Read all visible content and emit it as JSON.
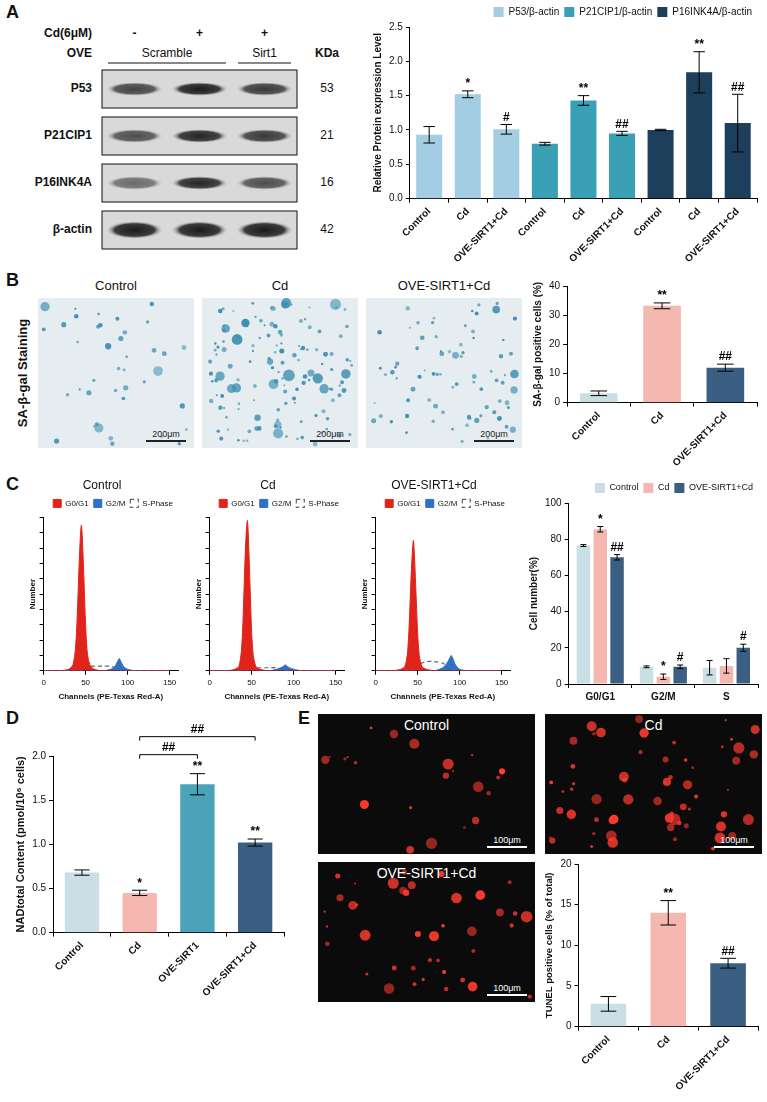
{
  "figure": {
    "panels": [
      "A",
      "B",
      "C",
      "D",
      "E"
    ],
    "blot": {
      "treatment_label": "Cd(6μM)",
      "treatment": [
        "-",
        "+",
        "+"
      ],
      "group_label": "OVE",
      "groups": [
        "Scramble",
        "Sirt1"
      ],
      "size_header": "KDa",
      "rows": [
        {
          "label": "P53",
          "kda": 53
        },
        {
          "label": "P21CIP1",
          "kda": 21
        },
        {
          "label": "P16INK4A",
          "kda": 16
        },
        {
          "label": "β-actin",
          "kda": 42
        }
      ]
    },
    "staining": {
      "side_label": "SA-β-gal Staining",
      "images": [
        "Control",
        "Cd",
        "OVE-SIRT1+Cd"
      ],
      "scale_bar": "200μm"
    },
    "tunel": {
      "images": [
        "Control",
        "Cd",
        "OVE-SIRT1+Cd"
      ],
      "scale_bar": "100μm"
    }
  },
  "chart_data": [
    {
      "type": "bar",
      "categories": [
        "Control",
        "Cd",
        "OVE-SIRT1+Cd",
        "Control",
        "Cd",
        "OVE-SIRT1+Cd",
        "Control",
        "Cd",
        "OVE-SIRT1+Cd"
      ],
      "y_label": "Relative Protein expression Level",
      "series": [
        {
          "name": "P53/β-actin",
          "color": "#a3cde3",
          "values": [
            0.93,
            1.52,
            1.01,
            null,
            null,
            null,
            null,
            null,
            null
          ],
          "errors": [
            0.12,
            0.05,
            0.07,
            null,
            null,
            null,
            null,
            null,
            null
          ],
          "significance": [
            null,
            "*",
            "#",
            null,
            null,
            null,
            null,
            null,
            null
          ]
        },
        {
          "name": "P21CIP1/β-actin",
          "color": "#3aa0b5",
          "values": [
            null,
            null,
            null,
            0.8,
            1.43,
            0.95,
            null,
            null,
            null
          ],
          "errors": [
            null,
            null,
            null,
            0.02,
            0.07,
            0.03,
            null,
            null,
            null
          ],
          "significance": [
            null,
            null,
            null,
            null,
            "**",
            "##",
            null,
            null,
            null
          ]
        },
        {
          "name": "P16INK4A/β-actin",
          "color": "#1d3f5c",
          "values": [
            null,
            null,
            null,
            null,
            null,
            null,
            1,
            1.84,
            1.1
          ],
          "errors": [
            null,
            null,
            null,
            null,
            null,
            null,
            0.01,
            0.3,
            0.42
          ],
          "significance": [
            null,
            null,
            null,
            null,
            null,
            null,
            null,
            "**",
            "##"
          ]
        }
      ],
      "ylim": [
        0,
        2.5
      ],
      "yticks": [
        {
          "value": 0,
          "label": "0.0"
        },
        0.5,
        {
          "value": 1,
          "label": "1.0"
        },
        1.5,
        {
          "value": 2,
          "label": "2.0"
        },
        2.5
      ],
      "grid": false,
      "legend": "top-right"
    },
    {
      "type": "bar",
      "categories": [
        "Control",
        "Cd",
        "OVE-SIRT1+Cd"
      ],
      "values": [
        3.2,
        33.2,
        12
      ],
      "errors": [
        0.8,
        1,
        1.2
      ],
      "significance": [
        null,
        "**",
        "##"
      ],
      "colors": [
        "#c9dfe5",
        "#f4b8b0",
        "#3b5f82"
      ],
      "y_label": "SA-β-gal positive cells (%)",
      "ylim": [
        0,
        40
      ],
      "yticks": [
        0,
        10,
        20,
        30,
        40
      ],
      "grid": false
    },
    {
      "type": "line",
      "title": "Control",
      "x": [
        0,
        10,
        20,
        30,
        35,
        38,
        40,
        42,
        44,
        45,
        46,
        48,
        50,
        52,
        55,
        60,
        70,
        80,
        85,
        88,
        90,
        92,
        95,
        100,
        110,
        120,
        130,
        140,
        150
      ],
      "series": [
        {
          "name": "G0/G1",
          "type": "area",
          "color": "#e0241b",
          "values": [
            0,
            0,
            0,
            1,
            4,
            15,
            35,
            65,
            90,
            95,
            88,
            60,
            30,
            12,
            4,
            1,
            0,
            0,
            0,
            0,
            0,
            0,
            0,
            0,
            0,
            0,
            0,
            0,
            0
          ]
        },
        {
          "name": "G2/M",
          "type": "area",
          "color": "#2f6fc4",
          "values": [
            0,
            0,
            0,
            0,
            0,
            0,
            0,
            0,
            0,
            0,
            0,
            0,
            0,
            0,
            0,
            0,
            0,
            1,
            3,
            6,
            8,
            6,
            3,
            1,
            0,
            0,
            0,
            0,
            0
          ]
        },
        {
          "name": "S-Phase",
          "type": "line",
          "line_style": "dashed",
          "color": "#666666",
          "values": [
            0,
            0,
            0,
            0,
            0,
            0,
            0,
            0,
            0,
            0,
            0,
            0,
            1,
            2,
            3,
            3,
            3,
            3,
            2,
            1,
            1,
            0,
            0,
            0,
            0,
            0,
            0,
            0,
            0
          ]
        }
      ],
      "x_label": "Channels (PE-Texas Red-A)",
      "y_label": "Number",
      "xlim": [
        0,
        160
      ],
      "xticks": [
        0,
        50,
        100,
        150
      ],
      "ylim": [
        0,
        100
      ],
      "tick_labels": "x",
      "grid": false,
      "legend": "top-right"
    },
    {
      "type": "line",
      "title": "Cd",
      "x": [
        0,
        10,
        20,
        30,
        35,
        38,
        40,
        42,
        44,
        45,
        46,
        48,
        50,
        52,
        55,
        60,
        70,
        80,
        85,
        88,
        90,
        92,
        95,
        100,
        110,
        120,
        130,
        140,
        150
      ],
      "series": [
        {
          "name": "G0/G1",
          "type": "area",
          "color": "#e0241b",
          "values": [
            0,
            0,
            0,
            1,
            3,
            14,
            36,
            70,
            94,
            98,
            90,
            58,
            26,
            10,
            3,
            1,
            0,
            0,
            0,
            0,
            0,
            0,
            0,
            0,
            0,
            0,
            0,
            0,
            0
          ]
        },
        {
          "name": "G2/M",
          "type": "area",
          "color": "#2f6fc4",
          "values": [
            0,
            0,
            0,
            0,
            0,
            0,
            0,
            0,
            0,
            0,
            0,
            0,
            0,
            0,
            0,
            0,
            0,
            1,
            2,
            3,
            4,
            3,
            2,
            1,
            0,
            0,
            0,
            0,
            0
          ]
        },
        {
          "name": "S-Phase",
          "type": "line",
          "line_style": "dashed",
          "color": "#666666",
          "values": [
            0,
            0,
            0,
            0,
            0,
            0,
            0,
            0,
            0,
            0,
            0,
            0,
            1,
            2,
            2,
            2,
            2,
            2,
            1,
            1,
            0,
            0,
            0,
            0,
            0,
            0,
            0,
            0,
            0
          ]
        }
      ],
      "x_label": "Channels (PE-Texas Red-A)",
      "y_label": "Number",
      "xlim": [
        0,
        160
      ],
      "xticks": [
        0,
        50,
        100,
        150
      ],
      "ylim": [
        0,
        100
      ],
      "tick_labels": "x",
      "grid": false,
      "legend": "top-right"
    },
    {
      "type": "line",
      "title": "OVE-SIRT1+Cd",
      "x": [
        0,
        10,
        20,
        30,
        35,
        38,
        40,
        42,
        44,
        45,
        46,
        48,
        50,
        52,
        55,
        60,
        70,
        80,
        85,
        88,
        90,
        92,
        95,
        100,
        110,
        120,
        130,
        140,
        150
      ],
      "series": [
        {
          "name": "G0/G1",
          "type": "area",
          "color": "#e0241b",
          "values": [
            0,
            0,
            0,
            1,
            3,
            12,
            30,
            58,
            80,
            85,
            78,
            52,
            25,
            10,
            3,
            1,
            0,
            0,
            0,
            0,
            0,
            0,
            0,
            0,
            0,
            0,
            0,
            0,
            0
          ]
        },
        {
          "name": "G2/M",
          "type": "area",
          "color": "#2f6fc4",
          "values": [
            0,
            0,
            0,
            0,
            0,
            0,
            0,
            0,
            0,
            0,
            0,
            0,
            0,
            0,
            0,
            0,
            0,
            2,
            5,
            8,
            10,
            8,
            4,
            1,
            0,
            0,
            0,
            0,
            0
          ]
        },
        {
          "name": "S-Phase",
          "type": "line",
          "line_style": "dashed",
          "color": "#666666",
          "values": [
            0,
            0,
            0,
            0,
            0,
            0,
            0,
            0,
            0,
            0,
            0,
            0,
            2,
            4,
            5,
            6,
            6,
            5,
            3,
            2,
            1,
            0,
            0,
            0,
            0,
            0,
            0,
            0,
            0
          ]
        }
      ],
      "x_label": "Channels (PE-Texas Red-A)",
      "y_label": "Number",
      "xlim": [
        0,
        160
      ],
      "xticks": [
        0,
        50,
        100,
        150
      ],
      "ylim": [
        0,
        100
      ],
      "tick_labels": "x",
      "grid": false,
      "legend": "top-right"
    },
    {
      "type": "bar",
      "categories": [
        "G0/G1",
        "G2/M",
        "S"
      ],
      "series": [
        {
          "name": "Control",
          "color": "#c9dfe5",
          "values": [
            76.5,
            9.5,
            9
          ],
          "errors": [
            0.5,
            0.5,
            4
          ],
          "significance": [
            null,
            null,
            null
          ]
        },
        {
          "name": "Cd",
          "color": "#f4b8b0",
          "values": [
            85.5,
            4,
            10
          ],
          "errors": [
            1.5,
            1.5,
            4
          ],
          "significance": [
            "*",
            "*",
            null
          ]
        },
        {
          "name": "OVE-SIRT1+Cd",
          "color": "#3b5f82",
          "values": [
            70,
            9.5,
            20
          ],
          "errors": [
            1.5,
            1,
            2
          ],
          "significance": [
            "##",
            "#",
            "#"
          ]
        }
      ],
      "y_label": "Cell number(%)",
      "ylim": [
        0,
        100
      ],
      "yticks": [
        0,
        20,
        40,
        60,
        80,
        100
      ],
      "grid": false,
      "legend": "top-right"
    },
    {
      "type": "bar",
      "categories": [
        "Control",
        "Cd",
        "OVE-SIRT1",
        "OVE-SIRT1+Cd"
      ],
      "values": [
        0.68,
        0.45,
        1.68,
        1.02
      ],
      "errors": [
        0.03,
        0.03,
        0.12,
        0.04
      ],
      "significance": [
        null,
        "*",
        "**",
        "**"
      ],
      "colors": [
        "#c9dfe5",
        "#f4b8b0",
        "#4aa3b8",
        "#3b5f82"
      ],
      "brackets": [
        {
          "from": "Cd",
          "to": "OVE-SIRT1",
          "label": "##"
        },
        {
          "from": "Cd",
          "to": "OVE-SIRT1+Cd",
          "label": "##"
        }
      ],
      "y_label": "NADtotal Content (pmol/10⁶ cells)",
      "ylim": [
        0,
        2
      ],
      "yticks": [
        {
          "value": 0,
          "label": "0.0"
        },
        0.5,
        {
          "value": 1,
          "label": "1.0"
        },
        1.5,
        {
          "value": 2,
          "label": "2.0"
        }
      ],
      "grid": false
    },
    {
      "type": "bar",
      "categories": [
        "Control",
        "Cd",
        "OVE-SIRT1+Cd"
      ],
      "values": [
        2.8,
        14,
        7.8
      ],
      "errors": [
        0.9,
        1.5,
        0.6
      ],
      "significance": [
        null,
        "**",
        "##"
      ],
      "colors": [
        "#c9dfe5",
        "#f4b8b0",
        "#3b5f82"
      ],
      "y_label": "TUNEL positive cells (% of total)",
      "ylim": [
        0,
        20
      ],
      "yticks": [
        0,
        5,
        10,
        15,
        20
      ],
      "grid": false
    }
  ]
}
